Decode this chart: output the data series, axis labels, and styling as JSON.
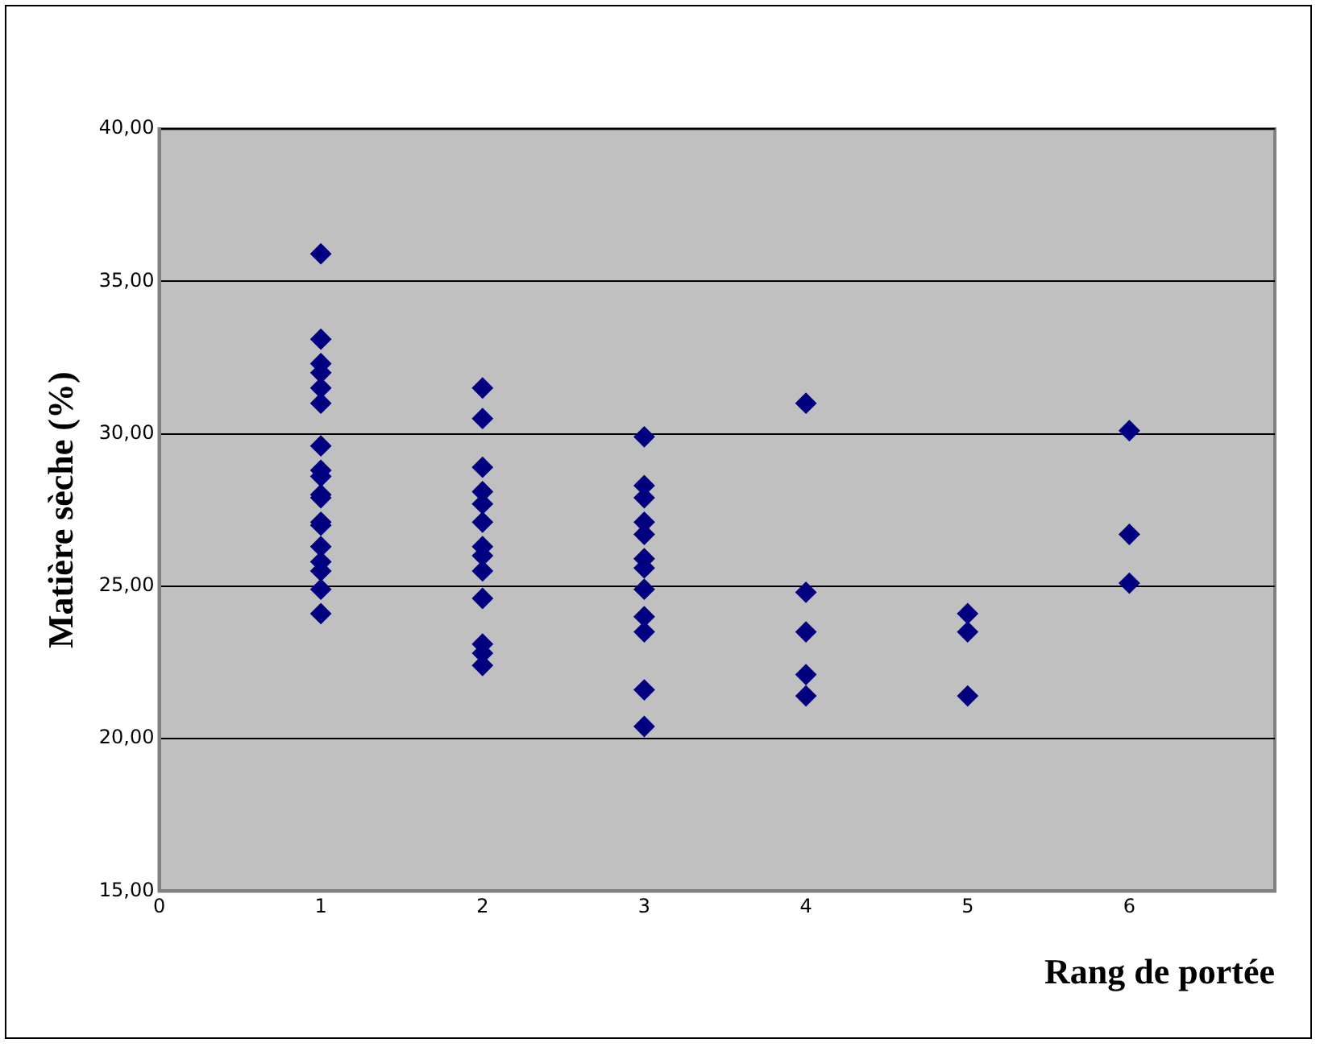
{
  "chart_data": {
    "type": "scatter",
    "xlabel": "Rang de portée",
    "ylabel": "Matière sèche (%)",
    "series": [
      {
        "color": "#000080",
        "x": [
          1,
          1,
          1,
          1,
          1,
          1,
          1,
          1,
          1,
          1,
          1,
          1,
          1,
          1,
          1,
          1,
          1,
          1,
          2,
          2,
          2,
          2,
          2,
          2,
          2,
          2,
          2,
          2,
          2,
          2,
          2,
          3,
          3,
          3,
          3,
          3,
          3,
          3,
          3,
          3,
          3,
          3,
          3,
          4,
          4,
          4,
          4,
          4,
          5,
          5,
          5,
          6,
          6,
          6
        ],
        "values": [
          35.9,
          33.1,
          32.3,
          32.0,
          31.5,
          31.0,
          29.6,
          28.8,
          28.6,
          28.0,
          27.9,
          27.1,
          27.0,
          26.3,
          25.8,
          25.5,
          24.9,
          24.1,
          31.5,
          30.5,
          28.9,
          28.1,
          27.7,
          27.1,
          26.3,
          26.0,
          25.5,
          24.6,
          23.1,
          22.8,
          22.4,
          29.9,
          28.3,
          27.9,
          27.1,
          26.7,
          25.9,
          25.6,
          24.9,
          24.0,
          23.5,
          21.6,
          20.4,
          31.0,
          24.8,
          23.5,
          22.1,
          21.4,
          24.1,
          23.5,
          21.4,
          30.1,
          26.7,
          25.1
        ]
      }
    ],
    "marker": "diamond",
    "grid": "y",
    "legend": false,
    "xlim": [
      0,
      6.9
    ],
    "xticks": [
      0,
      1,
      2,
      3,
      4,
      5,
      6
    ],
    "ylim": [
      15,
      40
    ],
    "yticks": [
      {
        "value": 15,
        "label": "15,00"
      },
      {
        "value": 20,
        "label": "20,00"
      },
      {
        "value": 25,
        "label": "25,00"
      },
      {
        "value": 30,
        "label": "30,00"
      },
      {
        "value": 35,
        "label": "35,00"
      },
      {
        "value": 40,
        "label": "40,00"
      }
    ]
  }
}
